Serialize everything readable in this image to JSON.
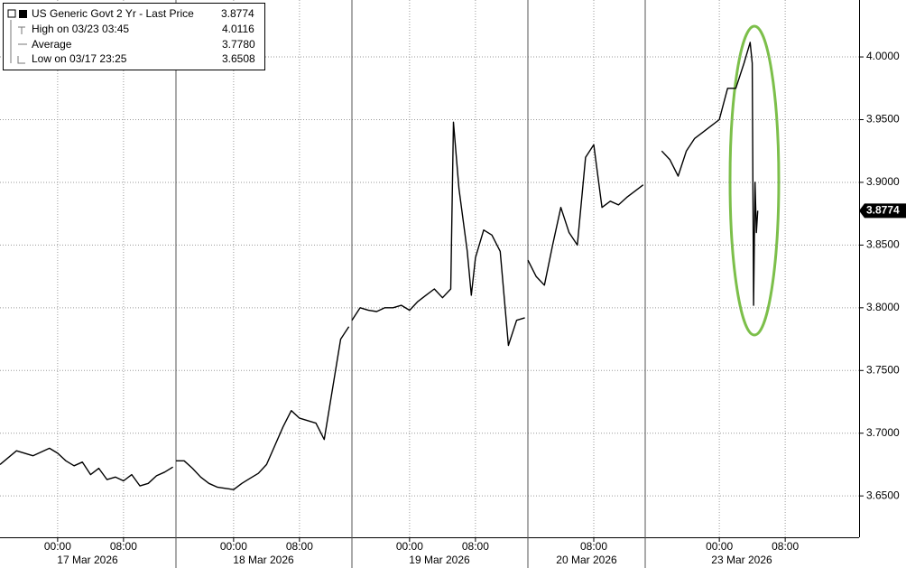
{
  "chart_data": {
    "type": "line",
    "series": [
      {
        "name": "US Generic Govt 2 Yr - Last Price",
        "color": "#000000",
        "x": [
          "03/16 17:00",
          "03/16 19:00",
          "03/16 21:00",
          "03/16 23:00",
          "03/17 00:00",
          "03/17 01:00",
          "03/17 02:00",
          "03/17 03:00",
          "03/17 04:00",
          "03/17 05:00",
          "03/17 06:00",
          "03/17 07:00",
          "03/17 08:00",
          "03/17 09:00",
          "03/17 10:00",
          "03/17 11:00",
          "03/17 12:00",
          "03/17 13:00",
          "03/17 14:00",
          null,
          "03/17 17:00",
          "03/17 18:00",
          "03/17 19:00",
          "03/17 20:00",
          "03/17 21:00",
          "03/17 22:00",
          "03/17 23:00",
          "03/18 00:00",
          "03/18 01:00",
          "03/18 02:00",
          "03/18 03:00",
          "03/18 04:00",
          "03/18 05:00",
          "03/18 06:00",
          "03/18 07:00",
          "03/18 08:00",
          "03/18 09:00",
          "03/18 10:00",
          "03/18 11:00",
          "03/18 12:00",
          "03/18 13:00",
          "03/18 14:00",
          null,
          "03/18 17:00",
          "03/18 18:00",
          "03/18 19:00",
          "03/18 20:00",
          "03/18 21:00",
          "03/18 22:00",
          "03/18 23:00",
          "03/19 00:00",
          "03/19 01:00",
          "03/19 02:00",
          "03/19 03:00",
          "03/19 04:00",
          "03/19 05:00",
          "03/19 05:20",
          "03/19 06:00",
          "03/19 07:00",
          "03/19 07:30",
          "03/19 08:00",
          "03/19 09:00",
          "03/19 10:00",
          "03/19 11:00",
          "03/19 12:00",
          "03/19 13:00",
          "03/19 14:00",
          null,
          "03/20 00:00",
          "03/20 01:00",
          "03/20 02:00",
          "03/20 03:00",
          "03/20 04:00",
          "03/20 05:00",
          "03/20 06:00",
          "03/20 07:00",
          "03/20 08:00",
          "03/20 09:00",
          "03/20 10:00",
          "03/20 11:00",
          "03/20 12:00",
          "03/20 13:00",
          "03/20 14:00",
          null,
          "03/22 17:00",
          "03/22 18:00",
          "03/22 19:00",
          "03/22 20:00",
          "03/22 21:00",
          "03/22 22:00",
          "03/22 23:00",
          "03/23 00:00",
          "03/23 01:00",
          "03/23 02:00",
          "03/23 03:00",
          "03/23 03:45",
          "03/23 04:00",
          "03/23 04:10",
          "03/23 04:20",
          "03/23 04:30",
          "03/23 04:40"
        ],
        "values": [
          3.675,
          3.686,
          3.682,
          3.688,
          3.684,
          3.678,
          3.674,
          3.677,
          3.667,
          3.672,
          3.663,
          3.665,
          3.662,
          3.667,
          3.658,
          3.66,
          3.666,
          3.669,
          3.673,
          null,
          3.678,
          3.678,
          3.672,
          3.665,
          3.66,
          3.657,
          3.656,
          3.655,
          3.66,
          3.664,
          3.668,
          3.675,
          3.69,
          3.705,
          3.718,
          3.712,
          3.71,
          3.708,
          3.695,
          3.735,
          3.775,
          3.785,
          null,
          3.79,
          3.8,
          3.798,
          3.797,
          3.8,
          3.8,
          3.802,
          3.798,
          3.805,
          3.81,
          3.815,
          3.808,
          3.815,
          3.948,
          3.895,
          3.845,
          3.81,
          3.84,
          3.862,
          3.858,
          3.845,
          3.77,
          3.79,
          3.792,
          null,
          3.838,
          3.825,
          3.818,
          3.85,
          3.88,
          3.86,
          3.85,
          3.92,
          3.93,
          3.88,
          3.885,
          3.882,
          3.888,
          3.893,
          3.898,
          null,
          3.925,
          3.918,
          3.905,
          3.925,
          3.935,
          3.94,
          3.945,
          3.95,
          3.975,
          3.975,
          3.995,
          4.0116,
          3.995,
          3.802,
          3.9,
          3.86,
          3.8774
        ]
      }
    ],
    "stats": [
      {
        "label": "High on 03/23 03:45",
        "value": 4.0116
      },
      {
        "label": "Average",
        "value": {
          "value": 3.778,
          "label": "3.7780"
        }
      },
      {
        "label": "Low on 03/17 23:25",
        "value": 3.6508
      }
    ],
    "ylim": [
      3.617,
      4.0454
    ],
    "yticks": [
      {
        "value": 3.65,
        "label": "3.6500"
      },
      {
        "value": 3.7,
        "label": "3.7000"
      },
      {
        "value": 3.75,
        "label": "3.7500"
      },
      {
        "value": 3.8,
        "label": "3.8000"
      },
      {
        "value": 3.85,
        "label": "3.8500"
      },
      {
        "value": 3.9,
        "label": "3.9000"
      },
      {
        "value": 3.95,
        "label": "3.9500"
      },
      {
        "value": 4.0,
        "label": "4.0000"
      }
    ],
    "xticks": [
      {
        "value": "03/17 00:00",
        "label": "00:00"
      },
      {
        "value": "03/17 08:00",
        "label": "08:00"
      },
      {
        "value": "03/18 00:00",
        "label": "00:00"
      },
      {
        "value": "03/18 08:00",
        "label": "08:00"
      },
      {
        "value": "03/19 00:00",
        "label": "00:00"
      },
      {
        "value": "03/19 08:00",
        "label": "08:00"
      },
      {
        "value": "03/20 08:00",
        "label": "08:00"
      },
      {
        "value": "03/23 00:00",
        "label": "00:00"
      },
      {
        "value": "03/23 08:00",
        "label": "08:00"
      }
    ],
    "date_labels": [
      "17 Mar 2026",
      "18 Mar 2026",
      "19 Mar 2026",
      "20 Mar 2026",
      "23 Mar 2026"
    ],
    "grid": true
  }
}
